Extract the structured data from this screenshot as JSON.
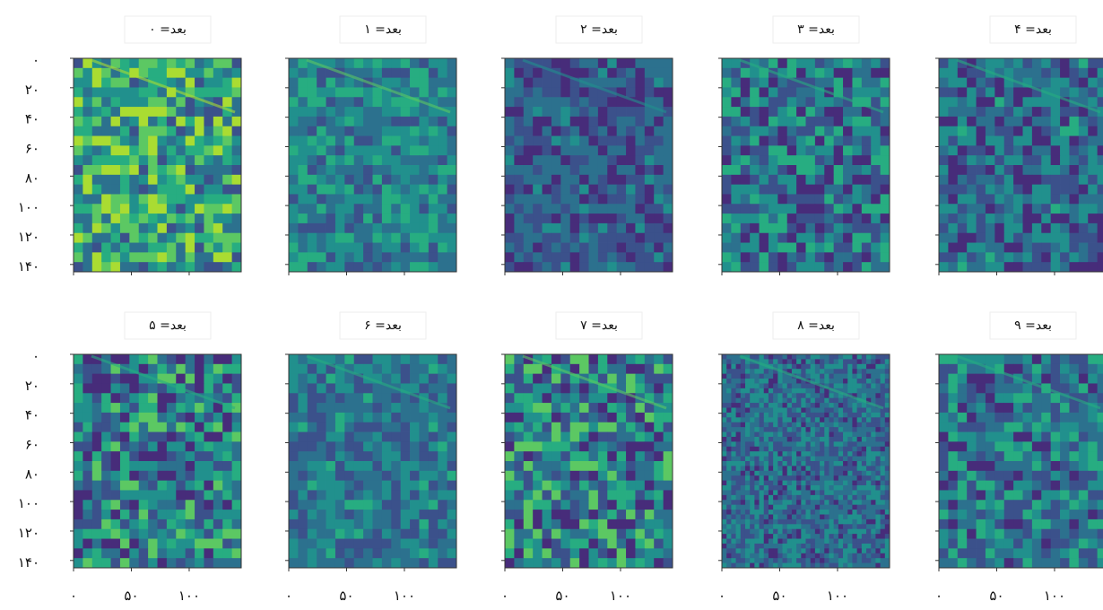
{
  "panels": [
    {
      "title": "بعد= ۰"
    },
    {
      "title": "بعد= ۱"
    },
    {
      "title": "بعد= ۲"
    },
    {
      "title": "بعد= ۳"
    },
    {
      "title": "بعد= ۴"
    },
    {
      "title": "بعد= ۵"
    },
    {
      "title": "بعد= ۶"
    },
    {
      "title": "بعد= ۷"
    },
    {
      "title": "بعد= ۸"
    },
    {
      "title": "بعد= ۹"
    }
  ],
  "xlim": [
    0,
    145
  ],
  "ylim": [
    0,
    145
  ],
  "yticks": [
    {
      "value": 0,
      "label": "۰"
    },
    {
      "value": 20,
      "label": "۲۰"
    },
    {
      "value": 40,
      "label": "۴۰"
    },
    {
      "value": 60,
      "label": "۶۰"
    },
    {
      "value": 80,
      "label": "۸۰"
    },
    {
      "value": 100,
      "label": "۱۰۰"
    },
    {
      "value": 120,
      "label": "۱۲۰"
    },
    {
      "value": 140,
      "label": "۱۴۰"
    }
  ],
  "xticks": [
    {
      "value": 0,
      "label": "۰"
    },
    {
      "value": 50,
      "label": "۵۰"
    },
    {
      "value": 100,
      "label": "۱۰۰"
    }
  ]
}
